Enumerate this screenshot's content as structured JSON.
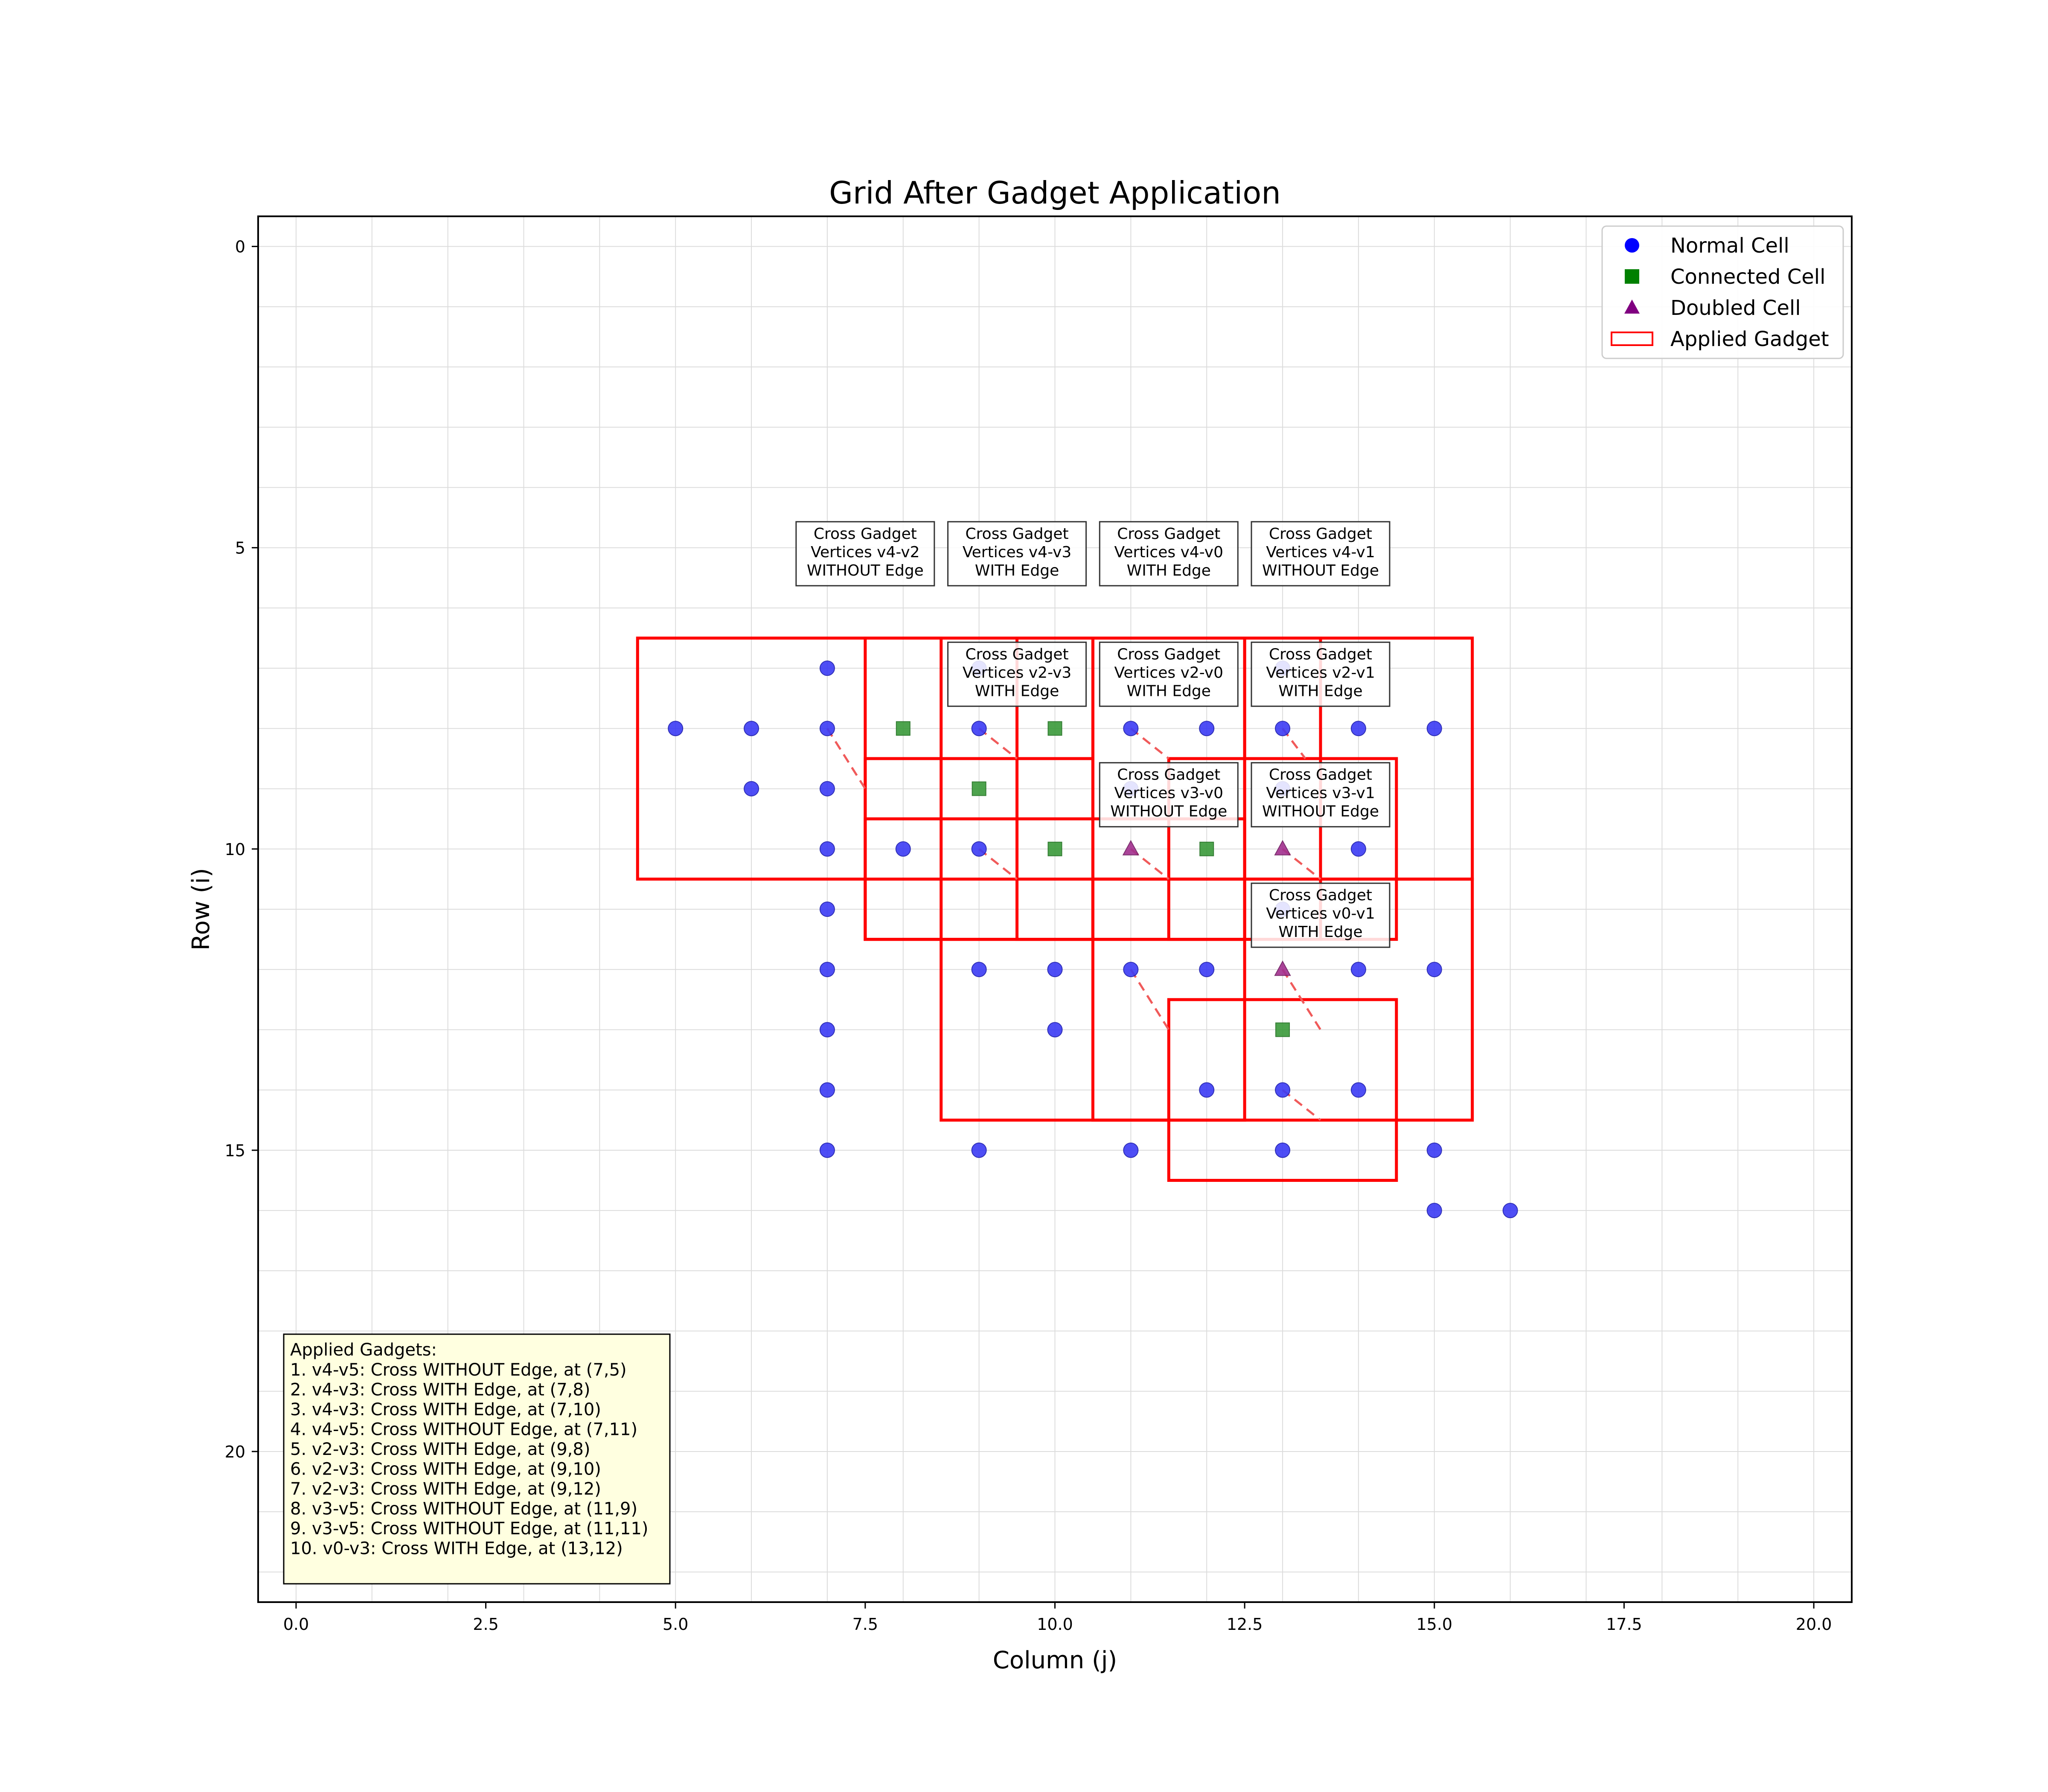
{
  "chart_data": {
    "type": "scatter",
    "title": "Grid After Gadget Application",
    "xlabel": "Column (j)",
    "ylabel": "Row (i)",
    "xlim": [
      -0.5,
      20.5
    ],
    "ylim": [
      22.5,
      -0.5
    ],
    "y_inverted": true,
    "grid": true,
    "legend_position": "top-right",
    "x_ticks": [
      "0.0",
      "2.5",
      "5.0",
      "7.5",
      "10.0",
      "12.5",
      "15.0",
      "17.5",
      "20.0"
    ],
    "x_tick_values": [
      0,
      2.5,
      5,
      7.5,
      10,
      12.5,
      15,
      17.5,
      20
    ],
    "y_ticks": [
      "0",
      "5",
      "10",
      "15",
      "20"
    ],
    "y_tick_values": [
      0,
      5,
      10,
      15,
      20
    ],
    "legend": [
      {
        "label": "Normal Cell",
        "marker": "circle",
        "color": "#0000ff"
      },
      {
        "label": "Connected Cell",
        "marker": "square",
        "color": "#008000"
      },
      {
        "label": "Doubled Cell",
        "marker": "triangle",
        "color": "#800080"
      },
      {
        "label": "Applied Gadget",
        "marker": "rect",
        "color": "#ff0000"
      }
    ],
    "colors": {
      "normal": "#3b3bf5",
      "connected": "#3a9a3a",
      "doubled": "#a2308f",
      "gadget": "#ff0000",
      "dashed": "#f05a5a"
    },
    "normal_cells": [
      [
        7,
        7
      ],
      [
        9,
        7
      ],
      [
        13,
        7
      ],
      [
        5,
        8
      ],
      [
        6,
        8
      ],
      [
        7,
        8
      ],
      [
        9,
        8
      ],
      [
        11,
        8
      ],
      [
        12,
        8
      ],
      [
        13,
        8
      ],
      [
        14,
        8
      ],
      [
        15,
        8
      ],
      [
        6,
        9
      ],
      [
        7,
        9
      ],
      [
        11,
        9
      ],
      [
        13,
        9
      ],
      [
        7,
        10
      ],
      [
        8,
        10
      ],
      [
        9,
        10
      ],
      [
        14,
        10
      ],
      [
        7,
        11
      ],
      [
        13,
        11
      ],
      [
        7,
        12
      ],
      [
        9,
        12
      ],
      [
        10,
        12
      ],
      [
        11,
        12
      ],
      [
        12,
        12
      ],
      [
        14,
        12
      ],
      [
        15,
        12
      ],
      [
        7,
        13
      ],
      [
        10,
        13
      ],
      [
        7,
        14
      ],
      [
        12,
        14
      ],
      [
        13,
        14
      ],
      [
        14,
        14
      ],
      [
        7,
        15
      ],
      [
        9,
        15
      ],
      [
        11,
        15
      ],
      [
        13,
        15
      ],
      [
        15,
        15
      ],
      [
        15,
        16
      ],
      [
        16,
        16
      ]
    ],
    "connected_cells": [
      [
        8,
        8
      ],
      [
        10,
        8
      ],
      [
        9,
        9
      ],
      [
        10,
        10
      ],
      [
        12,
        10
      ],
      [
        13,
        13
      ]
    ],
    "doubled_cells": [
      [
        11,
        10
      ],
      [
        13,
        10
      ],
      [
        13,
        12
      ]
    ],
    "gadget_rects": [
      [
        4.5,
        6.5,
        8.5,
        10.5
      ],
      [
        7.5,
        6.5,
        10.5,
        11.5
      ],
      [
        9.5,
        6.5,
        12.5,
        11.5
      ],
      [
        10.5,
        6.5,
        13.5,
        11.5
      ],
      [
        12.5,
        6.5,
        15.5,
        10.5
      ],
      [
        7.5,
        8.5,
        10.5,
        11.5
      ],
      [
        7.5,
        9.5,
        12.5,
        11.5
      ],
      [
        11.5,
        8.5,
        14.5,
        11.5
      ],
      [
        8.5,
        10.5,
        12.5,
        14.5
      ],
      [
        10.5,
        10.5,
        15.5,
        14.5
      ],
      [
        11.5,
        12.5,
        14.5,
        15.5
      ]
    ],
    "dashed_lines": [
      [
        [
          7,
          8
        ],
        [
          7.5,
          9
        ]
      ],
      [
        [
          9,
          8
        ],
        [
          9.5,
          8.5
        ]
      ],
      [
        [
          11,
          8
        ],
        [
          11.5,
          8.5
        ]
      ],
      [
        [
          13,
          8
        ],
        [
          13.3,
          8.5
        ]
      ],
      [
        [
          9,
          10
        ],
        [
          9.5,
          10.5
        ]
      ],
      [
        [
          11,
          10
        ],
        [
          11.5,
          10.5
        ]
      ],
      [
        [
          13,
          10
        ],
        [
          13.5,
          10.5
        ]
      ],
      [
        [
          11,
          12
        ],
        [
          11.5,
          13
        ]
      ],
      [
        [
          13,
          12
        ],
        [
          13.5,
          13
        ]
      ],
      [
        [
          13,
          14
        ],
        [
          13.5,
          14.5
        ]
      ]
    ],
    "annotations": [
      {
        "lines": [
          "Cross Gadget",
          "Vertices v4-v2",
          "WITHOUT Edge"
        ],
        "x": 7.5,
        "y": 5.1
      },
      {
        "lines": [
          "Cross Gadget",
          "Vertices v4-v3",
          "WITH Edge"
        ],
        "x": 9.5,
        "y": 5.1
      },
      {
        "lines": [
          "Cross Gadget",
          "Vertices v4-v0",
          "WITH Edge"
        ],
        "x": 11.5,
        "y": 5.1
      },
      {
        "lines": [
          "Cross Gadget",
          "Vertices v4-v1",
          "WITHOUT Edge"
        ],
        "x": 13.5,
        "y": 5.1
      },
      {
        "lines": [
          "Cross Gadget",
          "Vertices v2-v3",
          "WITH Edge"
        ],
        "x": 9.5,
        "y": 7.1
      },
      {
        "lines": [
          "Cross Gadget",
          "Vertices v2-v0",
          "WITH Edge"
        ],
        "x": 11.5,
        "y": 7.1
      },
      {
        "lines": [
          "Cross Gadget",
          "Vertices v2-v1",
          "WITH Edge"
        ],
        "x": 13.5,
        "y": 7.1
      },
      {
        "lines": [
          "Cross Gadget",
          "Vertices v3-v0",
          "WITHOUT Edge"
        ],
        "x": 11.5,
        "y": 9.1
      },
      {
        "lines": [
          "Cross Gadget",
          "Vertices v3-v1",
          "WITHOUT Edge"
        ],
        "x": 13.5,
        "y": 9.1
      },
      {
        "lines": [
          "Cross Gadget",
          "Vertices v0-v1",
          "WITH Edge"
        ],
        "x": 13.5,
        "y": 11.1
      }
    ],
    "info_box": {
      "title": "Applied Gadgets:",
      "items": [
        "1. v4-v5: Cross WITHOUT Edge, at (7,5)",
        "2. v4-v3: Cross WITH Edge, at (7,8)",
        "3. v4-v3: Cross WITH Edge, at (7,10)",
        "4. v4-v5: Cross WITHOUT Edge, at (7,11)",
        "5. v2-v3: Cross WITH Edge, at (9,8)",
        "6. v2-v3: Cross WITH Edge, at (9,10)",
        "7. v2-v3: Cross WITH Edge, at (9,12)",
        "8. v3-v5: Cross WITHOUT Edge, at (11,9)",
        "9. v3-v5: Cross WITHOUT Edge, at (11,11)",
        "10. v0-v3: Cross WITH Edge, at (13,12)"
      ]
    }
  }
}
